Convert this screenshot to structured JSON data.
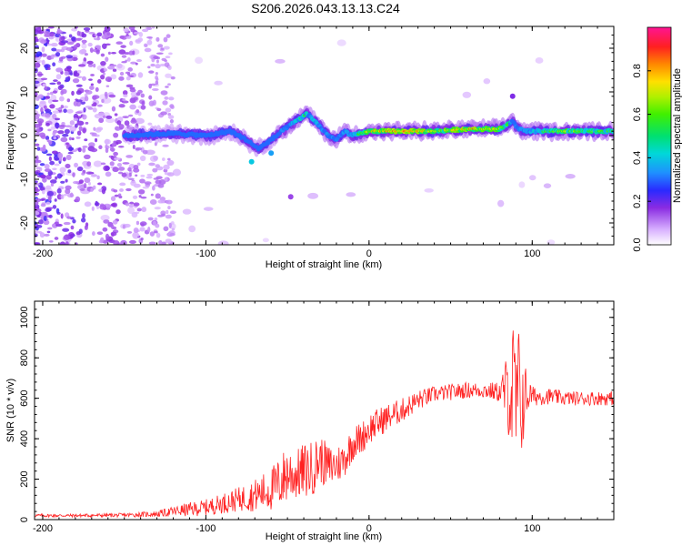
{
  "title": "S206.2026.043.13.13.C24",
  "chart_data": [
    {
      "type": "heatmap",
      "xlabel": "Height of straight line (km)",
      "ylabel": "Frequency (Hz)",
      "xlim": [
        -205,
        150
      ],
      "ylim": [
        -25,
        25
      ],
      "xticks": [
        -200,
        -100,
        0,
        100
      ],
      "yticks": [
        -20,
        -10,
        0,
        10,
        20
      ],
      "colorbar": {
        "label": "Normalized spectral amplitude",
        "range": [
          0,
          1
        ],
        "ticks": [
          0.0,
          0.2,
          0.4,
          0.6,
          0.8
        ],
        "tick_labels": [
          "0.0",
          "0.2",
          "0.4",
          "0.6",
          "0.8"
        ]
      },
      "ridge_frequency_hz": {
        "x": [
          -150,
          -120,
          -100,
          -85,
          -75,
          -68,
          -60,
          -50,
          -42,
          -38,
          -35,
          -30,
          -25,
          -20,
          -15,
          -10,
          -5,
          0,
          10,
          20,
          40,
          60,
          80,
          85,
          88,
          90,
          95,
          100,
          120,
          150
        ],
        "y": [
          0,
          0.5,
          0,
          1,
          -1,
          -3,
          -1,
          2,
          4,
          5,
          4,
          2,
          0,
          -1,
          1,
          0,
          0.5,
          1,
          1,
          1,
          1,
          1.5,
          1.5,
          2.5,
          3.5,
          2,
          1,
          1,
          1,
          1
        ]
      },
      "ridge_amplitude": {
        "x": [
          -150,
          -120,
          -100,
          -85,
          -75,
          -60,
          -50,
          -40,
          -30,
          -20,
          -10,
          0,
          10,
          20,
          40,
          60,
          80,
          90,
          100,
          120,
          150
        ],
        "y": [
          0.25,
          0.3,
          0.35,
          0.3,
          0.35,
          0.3,
          0.45,
          0.55,
          0.45,
          0.4,
          0.5,
          0.75,
          0.85,
          0.9,
          0.7,
          0.85,
          0.75,
          0.4,
          0.55,
          0.7,
          0.6
        ]
      },
      "noise_region_x": [
        -205,
        -130
      ]
    },
    {
      "type": "line",
      "xlabel": "Height of straight line (km)",
      "ylabel": "SNR (10 * v/v)",
      "xlim": [
        -205,
        150
      ],
      "ylim": [
        0,
        1080
      ],
      "xticks": [
        -200,
        -100,
        0,
        100
      ],
      "yticks": [
        0,
        200,
        400,
        600,
        800,
        1000
      ],
      "series": [
        {
          "name": "SNR",
          "color": "#ff2222",
          "x": [
            -205,
            -180,
            -150,
            -130,
            -120,
            -110,
            -100,
            -90,
            -80,
            -70,
            -60,
            -55,
            -50,
            -45,
            -40,
            -35,
            -30,
            -25,
            -20,
            -15,
            -10,
            -5,
            0,
            10,
            20,
            30,
            40,
            50,
            60,
            70,
            80,
            85,
            88,
            90,
            92,
            95,
            98,
            100,
            110,
            120,
            130,
            140,
            150
          ],
          "y": [
            20,
            20,
            22,
            28,
            40,
            50,
            60,
            80,
            100,
            120,
            150,
            180,
            230,
            220,
            240,
            250,
            300,
            260,
            270,
            300,
            380,
            400,
            450,
            500,
            540,
            590,
            620,
            630,
            640,
            640,
            630,
            640,
            620,
            560,
            580,
            600,
            620,
            610,
            610,
            600,
            600,
            600,
            600
          ],
          "noise_amp": [
            8,
            8,
            10,
            15,
            25,
            35,
            40,
            50,
            60,
            80,
            110,
            130,
            150,
            120,
            140,
            140,
            120,
            110,
            100,
            90,
            90,
            80,
            80,
            70,
            60,
            50,
            40,
            40,
            40,
            40,
            50,
            200,
            380,
            400,
            380,
            200,
            80,
            50,
            40,
            35,
            35,
            35,
            35
          ]
        }
      ]
    }
  ]
}
